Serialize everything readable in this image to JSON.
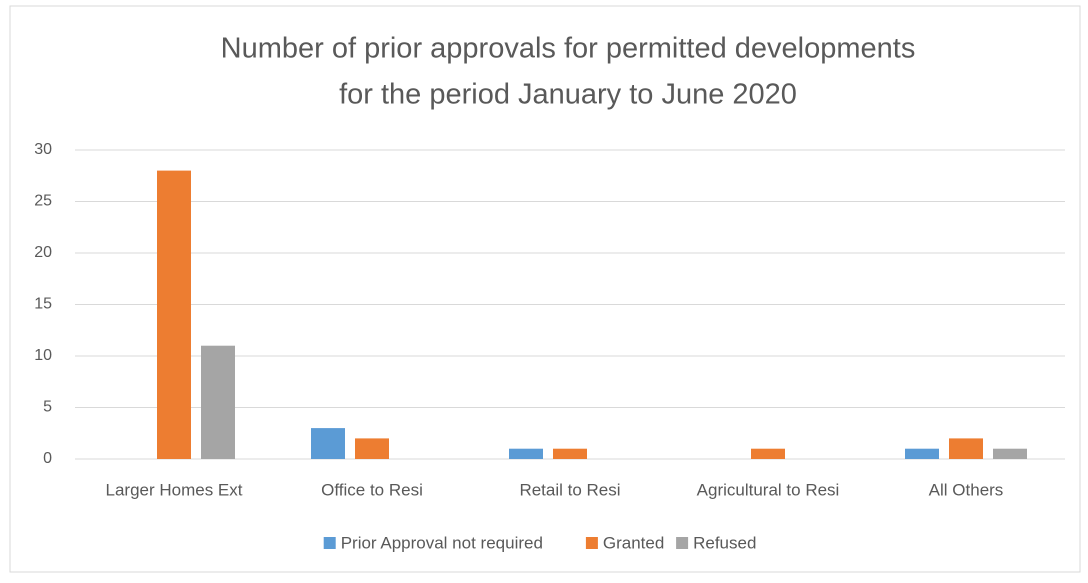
{
  "chart_data": {
    "type": "bar",
    "title": [
      "Number of prior approvals for permitted developments",
      "for the period January to June 2020"
    ],
    "categories": [
      "Larger Homes Ext",
      "Office to Resi",
      "Retail to Resi",
      "Agricultural to Resi",
      "All Others"
    ],
    "series": [
      {
        "name": "Prior Approval not required",
        "color": "#5b9bd5",
        "values": [
          0,
          3,
          1,
          0,
          1
        ]
      },
      {
        "name": "Granted",
        "color": "#ed7d31",
        "values": [
          28,
          2,
          1,
          1,
          2
        ]
      },
      {
        "name": "Refused",
        "color": "#a5a5a5",
        "values": [
          11,
          0,
          0,
          0,
          1
        ]
      }
    ],
    "ylim": [
      0,
      30
    ],
    "yticks": [
      0,
      5,
      10,
      15,
      20,
      25,
      30
    ],
    "grid": true,
    "legend": "bottom"
  }
}
